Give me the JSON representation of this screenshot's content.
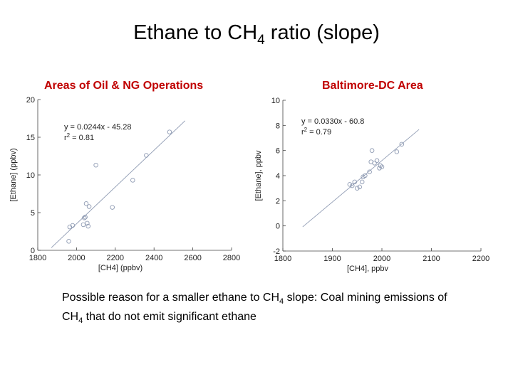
{
  "slide": {
    "title_main": "Ethane to CH",
    "title_sub": "4",
    "title_tail": " ratio (slope)"
  },
  "note": {
    "part1": "Possible reason for a smaller ethane to CH",
    "sub1": "4",
    "part2": " slope: Coal mining emissions of CH",
    "sub2": "4",
    "part3": " that do not emit significant ethane"
  },
  "chart_data": [
    {
      "type": "scatter",
      "title": "Areas of Oil & NG Operations",
      "xlabel": "[CH4] (ppbv)",
      "ylabel": "[Ethane] (ppbv)",
      "xlim": [
        1800,
        2800
      ],
      "ylim": [
        0,
        20
      ],
      "xticks": [
        1800,
        2000,
        2200,
        2400,
        2600,
        2800
      ],
      "yticks": [
        0,
        5,
        10,
        15,
        20
      ],
      "equation": "y = 0.0244x - 45.28",
      "r2_label": "r",
      "r2_exp": "2",
      "r2_value": " = 0.81",
      "fit": {
        "slope": 0.0244,
        "intercept": -45.28,
        "x_range": [
          1870,
          2560
        ]
      },
      "points": [
        [
          1960,
          1.2
        ],
        [
          1965,
          3.1
        ],
        [
          1980,
          3.3
        ],
        [
          2040,
          4.3
        ],
        [
          2045,
          4.4
        ],
        [
          2035,
          3.4
        ],
        [
          2055,
          3.6
        ],
        [
          2060,
          3.2
        ],
        [
          2050,
          6.2
        ],
        [
          2065,
          5.8
        ],
        [
          2100,
          11.3
        ],
        [
          2185,
          5.7
        ],
        [
          2290,
          9.3
        ],
        [
          2360,
          12.6
        ],
        [
          2480,
          15.7
        ]
      ],
      "grid": false,
      "color": "#8f9bb3"
    },
    {
      "type": "scatter",
      "title": "Baltimore-DC Area",
      "xlabel": "[CH4], ppbv",
      "ylabel": "[Ethane], ppbv",
      "xlim": [
        1800,
        2200
      ],
      "ylim": [
        -2,
        10
      ],
      "xticks": [
        1800,
        1900,
        2000,
        2100,
        2200
      ],
      "yticks": [
        -2,
        0,
        2,
        4,
        6,
        8,
        10
      ],
      "equation": "y = 0.0330x - 60.8",
      "r2_label": "r",
      "r2_exp": "2",
      "r2_value": " = 0.79",
      "fit": {
        "slope": 0.033,
        "intercept": -60.8,
        "x_range": [
          1840,
          2075
        ]
      },
      "points": [
        [
          1935,
          3.3
        ],
        [
          1940,
          3.2
        ],
        [
          1945,
          3.5
        ],
        [
          1950,
          3.0
        ],
        [
          1955,
          3.1
        ],
        [
          1960,
          3.5
        ],
        [
          1962,
          3.9
        ],
        [
          1966,
          4.0
        ],
        [
          1975,
          4.3
        ],
        [
          1978,
          5.1
        ],
        [
          1985,
          5.0
        ],
        [
          1990,
          5.2
        ],
        [
          1995,
          4.6
        ],
        [
          1997,
          4.8
        ],
        [
          1980,
          6.0
        ],
        [
          2000,
          4.7
        ],
        [
          2030,
          5.9
        ],
        [
          2040,
          6.5
        ]
      ],
      "grid": false,
      "color": "#8f9bb3"
    }
  ]
}
